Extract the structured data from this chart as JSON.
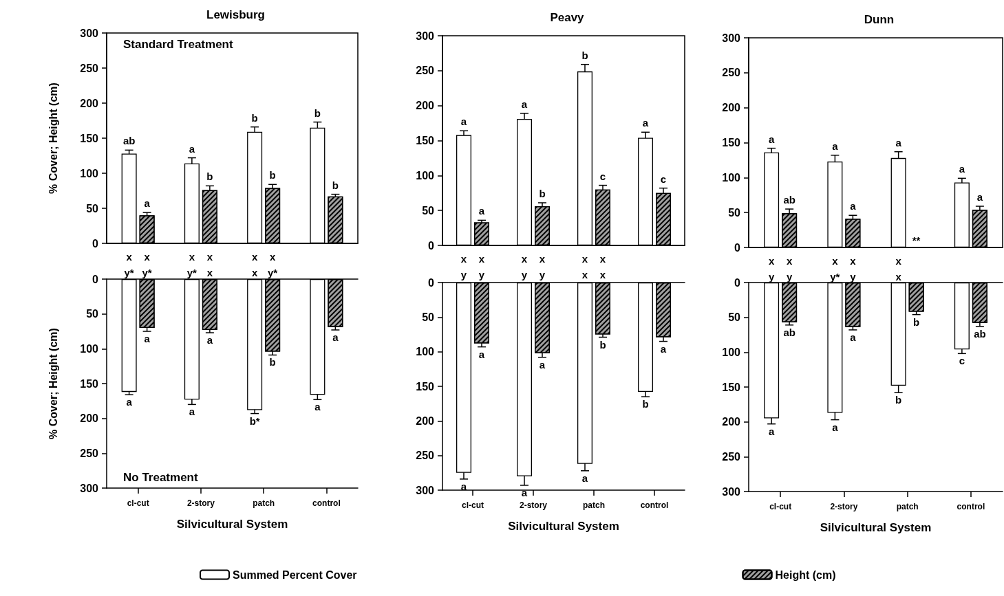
{
  "chart_data": [
    {
      "type": "bar",
      "title": "Lewisburg",
      "ylabel": "% Cover; Height (cm)",
      "categories": [
        "cl-cut",
        "2-story",
        "patch",
        "control"
      ],
      "ylim": [
        0,
        300
      ],
      "yticks": [
        0,
        50,
        100,
        150,
        200,
        250,
        300
      ],
      "tick_labels": "y",
      "legend": "bottom",
      "series": [
        {
          "name": "Summed Percent Cover",
          "color": "#ffffff",
          "values": [
            128,
            114,
            159,
            165
          ],
          "errors": [
            5,
            8,
            7,
            8
          ],
          "value_labels": [
            "ab",
            "a",
            "b",
            "b"
          ]
        },
        {
          "name": "Height (cm)",
          "color": "#a0a0a0",
          "values": [
            40,
            76,
            79,
            67
          ],
          "errors": [
            4,
            6,
            5,
            3
          ],
          "value_labels": [
            "a",
            "b",
            "b",
            "b"
          ]
        }
      ],
      "subtitle": "Standard Treatment",
      "annotations": [
        "x x",
        "y* y*",
        "x x",
        "y* x",
        "x x",
        "x y*"
      ]
    },
    {
      "type": "bar",
      "title": "Peavy",
      "categories": [
        "cl-cut",
        "2-story",
        "patch",
        "control"
      ],
      "ylim": [
        0,
        300
      ],
      "yticks": [
        0,
        50,
        100,
        150,
        200,
        250,
        300
      ],
      "tick_labels": "y",
      "series": [
        {
          "color": "#ffffff",
          "values": [
            158,
            181,
            249,
            154
          ],
          "errors": [
            6,
            8,
            10,
            8
          ],
          "value_labels": [
            "a",
            "a",
            "b",
            "a"
          ]
        },
        {
          "color": "#a0a0a0",
          "values": [
            33,
            56,
            80,
            75
          ],
          "errors": [
            3,
            5,
            6,
            7
          ],
          "value_labels": [
            "a",
            "b",
            "c",
            "c"
          ]
        }
      ],
      "annotations": [
        "x x",
        "y y",
        "x x",
        "y y",
        "x x",
        "x x"
      ]
    },
    {
      "type": "bar",
      "title": "Dunn",
      "categories": [
        "cl-cut",
        "2-story",
        "patch",
        "control"
      ],
      "ylim": [
        0,
        300
      ],
      "yticks": [
        0,
        50,
        100,
        150,
        200,
        250,
        300
      ],
      "tick_labels": "y",
      "series": [
        {
          "color": "#ffffff",
          "values": [
            136,
            123,
            128,
            93
          ],
          "errors": [
            6,
            9,
            9,
            6
          ],
          "value_labels": [
            "a",
            "a",
            "a",
            "a"
          ]
        },
        {
          "color": "#a0a0a0",
          "values": [
            49,
            41,
            null,
            54
          ],
          "errors": [
            6,
            5,
            null,
            5
          ],
          "value_labels": [
            "ab",
            "a",
            null,
            "a"
          ]
        }
      ],
      "annotations": [
        {
          "text": "**",
          "x": "patch",
          "y": 10
        },
        "x x",
        "y y",
        "x x",
        "y* y",
        "x",
        "x"
      ]
    },
    {
      "type": "bar",
      "ylabel": "% Cover; Height (cm)",
      "xlabel": "Silvicultural System",
      "categories": [
        "cl-cut",
        "2-story",
        "patch",
        "control"
      ],
      "ylim": [
        300,
        0
      ],
      "yticks": [
        0,
        50,
        100,
        150,
        200,
        250,
        300
      ],
      "series": [
        {
          "color": "#ffffff",
          "values": [
            162,
            173,
            188,
            166
          ],
          "errors": [
            4,
            7,
            5,
            7
          ],
          "value_labels": [
            "a",
            "a",
            "b*",
            "a"
          ]
        },
        {
          "color": "#a0a0a0",
          "values": [
            70,
            73,
            104,
            69
          ],
          "errors": [
            5,
            4,
            5,
            4
          ],
          "value_labels": [
            "a",
            "a",
            "b",
            "a"
          ]
        }
      ],
      "subtitle": "No Treatment"
    },
    {
      "type": "bar",
      "xlabel": "Silvicultural System",
      "categories": [
        "cl-cut",
        "2-story",
        "patch",
        "control"
      ],
      "ylim": [
        300,
        0
      ],
      "yticks": [
        0,
        50,
        100,
        150,
        200,
        250,
        300
      ],
      "series": [
        {
          "color": "#ffffff",
          "values": [
            275,
            280,
            262,
            158
          ],
          "errors": [
            9,
            13,
            10,
            7
          ],
          "value_labels": [
            "a",
            "a",
            "a",
            "b"
          ]
        },
        {
          "color": "#a0a0a0",
          "values": [
            88,
            102,
            75,
            79
          ],
          "errors": [
            5,
            6,
            4,
            6
          ],
          "value_labels": [
            "a",
            "a",
            "b",
            "a"
          ]
        }
      ]
    },
    {
      "type": "bar",
      "xlabel": "Silvicultural System",
      "categories": [
        "cl-cut",
        "2-story",
        "patch",
        "control"
      ],
      "ylim": [
        300,
        0
      ],
      "yticks": [
        0,
        50,
        100,
        150,
        200,
        250,
        300
      ],
      "series": [
        {
          "color": "#ffffff",
          "values": [
            195,
            187,
            148,
            96
          ],
          "errors": [
            8,
            10,
            10,
            6
          ],
          "value_labels": [
            "a",
            "a",
            "b",
            "c"
          ]
        },
        {
          "color": "#a0a0a0",
          "values": [
            57,
            64,
            42,
            58
          ],
          "errors": [
            4,
            4,
            4,
            5
          ],
          "value_labels": [
            "ab",
            "a",
            "b",
            "ab"
          ]
        }
      ]
    }
  ]
}
